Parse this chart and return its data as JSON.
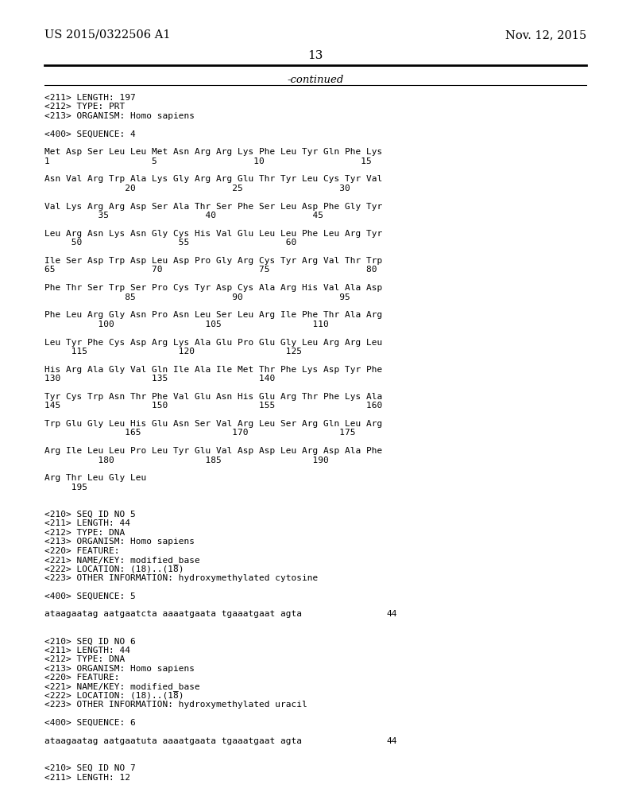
{
  "bg_color": "#ffffff",
  "header_left": "US 2015/0322506 A1",
  "header_right": "Nov. 12, 2015",
  "page_number": "13",
  "continued_text": "-continued",
  "lines": [
    "<211> LENGTH: 197",
    "<212> TYPE: PRT",
    "<213> ORGANISM: Homo sapiens",
    "",
    "<400> SEQUENCE: 4",
    "",
    "Met Asp Ser Leu Leu Met Asn Arg Arg Lys Phe Leu Tyr Gln Phe Lys",
    "1                   5                  10                  15",
    "",
    "Asn Val Arg Trp Ala Lys Gly Arg Arg Glu Thr Tyr Leu Cys Tyr Val",
    "               20                  25                  30",
    "",
    "Val Lys Arg Arg Asp Ser Ala Thr Ser Phe Ser Leu Asp Phe Gly Tyr",
    "          35                  40                  45",
    "",
    "Leu Arg Asn Lys Asn Gly Cys His Val Glu Leu Leu Phe Leu Arg Tyr",
    "     50                  55                  60",
    "",
    "Ile Ser Asp Trp Asp Leu Asp Pro Gly Arg Cys Tyr Arg Val Thr Trp",
    "65                  70                  75                  80",
    "",
    "Phe Thr Ser Trp Ser Pro Cys Tyr Asp Cys Ala Arg His Val Ala Asp",
    "               85                  90                  95",
    "",
    "Phe Leu Arg Gly Asn Pro Asn Leu Ser Leu Arg Ile Phe Thr Ala Arg",
    "          100                 105                 110",
    "",
    "Leu Tyr Phe Cys Asp Arg Lys Ala Glu Pro Glu Gly Leu Arg Arg Leu",
    "     115                 120                 125",
    "",
    "His Arg Ala Gly Val Gln Ile Ala Ile Met Thr Phe Lys Asp Tyr Phe",
    "130                 135                 140",
    "",
    "Tyr Cys Trp Asn Thr Phe Val Glu Asn His Glu Arg Thr Phe Lys Ala",
    "145                 150                 155                 160",
    "",
    "Trp Glu Gly Leu His Glu Asn Ser Val Arg Leu Ser Arg Gln Leu Arg",
    "               165                 170                 175",
    "",
    "Arg Ile Leu Leu Pro Leu Tyr Glu Val Asp Asp Leu Arg Asp Ala Phe",
    "          180                 185                 190",
    "",
    "Arg Thr Leu Gly Leu",
    "     195",
    "",
    "",
    "<210> SEQ ID NO 5",
    "<211> LENGTH: 44",
    "<212> TYPE: DNA",
    "<213> ORGANISM: Homo sapiens",
    "<220> FEATURE:",
    "<221> NAME/KEY: modified_base",
    "<222> LOCATION: (18)..(18)",
    "<223> OTHER INFORMATION: hydroxymethylated cytosine",
    "",
    "<400> SEQUENCE: 5",
    "",
    {
      "seq": "ataagaatag aatgaatcta aaaatgaata tgaaatgaat agta",
      "num": "44"
    },
    "",
    "",
    "<210> SEQ ID NO 6",
    "<211> LENGTH: 44",
    "<212> TYPE: DNA",
    "<213> ORGANISM: Homo sapiens",
    "<220> FEATURE:",
    "<221> NAME/KEY: modified_base",
    "<222> LOCATION: (18)..(18)",
    "<223> OTHER INFORMATION: hydroxymethylated uracil",
    "",
    "<400> SEQUENCE: 6",
    "",
    {
      "seq": "ataagaatag aatgaatuta aaaatgaata tgaaatgaat agta",
      "num": "44"
    },
    "",
    "",
    "<210> SEQ ID NO 7",
    "<211> LENGTH: 12"
  ]
}
